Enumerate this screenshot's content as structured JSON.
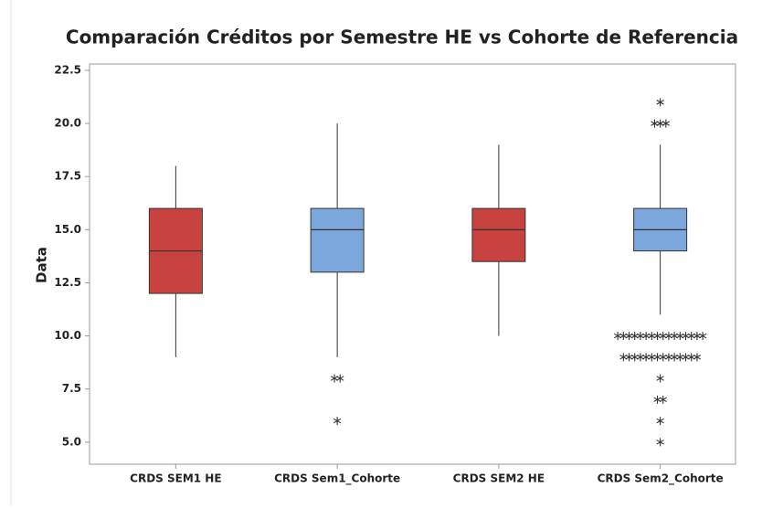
{
  "chart_data": {
    "type": "box",
    "title": "Comparación Créditos por Semestre HE vs Cohorte de Referencia",
    "y_label": "Data",
    "categories": [
      "CRDS SEM1 HE",
      "CRDS Sem1_Cohorte",
      "CRDS SEM2 HE",
      "CRDS Sem2_Cohorte"
    ],
    "ylim": [
      3.96,
      22.8
    ],
    "yticks": [
      {
        "value": 5,
        "label": "5.0"
      },
      7.5,
      {
        "value": 10,
        "label": "10.0"
      },
      12.5,
      {
        "value": 15,
        "label": "15.0"
      },
      17.5,
      {
        "value": 20,
        "label": "20.0"
      },
      22.5
    ],
    "boxes": [
      {
        "color": "#c8423f",
        "min": 9,
        "q1": 12,
        "median": 14,
        "q3": 16,
        "max": 18,
        "outliers": []
      },
      {
        "color": "#7ba7dc",
        "min": 9,
        "q1": 13,
        "median": 15,
        "q3": 16,
        "max": 20,
        "outliers": [
          8,
          8,
          6
        ]
      },
      {
        "color": "#c8423f",
        "min": 10,
        "q1": 13.5,
        "median": 15,
        "q3": 16,
        "max": 19,
        "outliers": []
      },
      {
        "color": "#7ba7dc",
        "min": 11,
        "q1": 14,
        "median": 15,
        "q3": 16,
        "max": 19,
        "outliers": [
          21,
          20,
          20,
          20,
          10,
          10,
          10,
          10,
          10,
          10,
          10,
          10,
          10,
          10,
          10,
          10,
          10,
          10,
          10,
          10,
          9,
          9,
          9,
          9,
          9,
          9,
          9,
          9,
          9,
          9,
          9,
          9,
          9,
          9,
          8,
          7,
          7,
          6,
          5
        ]
      }
    ]
  }
}
